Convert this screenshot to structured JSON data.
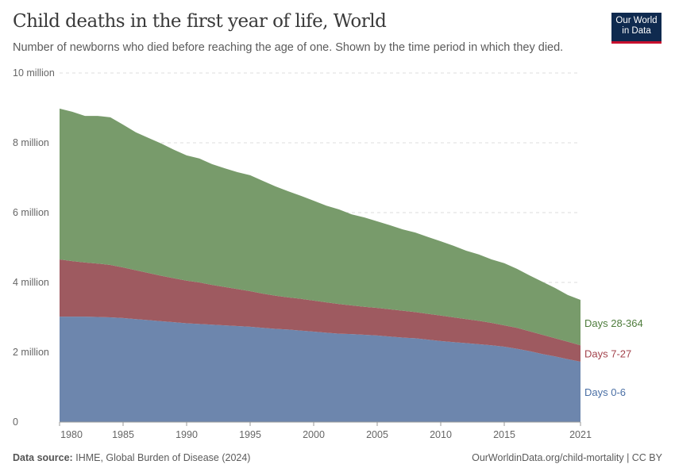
{
  "header": {
    "title": "Child deaths in the first year of life, World",
    "subtitle": "Number of newborns who died before reaching the age of one. Shown by the time period in which they died."
  },
  "logo": {
    "line1": "Our World",
    "line2": "in Data"
  },
  "footer": {
    "source_label": "Data source:",
    "source": "IHME, Global Burden of Disease (2024)",
    "url": "OurWorldinData.org/child-mortality | CC BY"
  },
  "chart_data": {
    "type": "area",
    "stacked": true,
    "title": "Child deaths in the first year of life, World",
    "xlim": [
      1980,
      2021
    ],
    "ylim": [
      0,
      10000000
    ],
    "x_ticks": [
      "1980",
      "1985",
      "1990",
      "1995",
      "2000",
      "2005",
      "2010",
      "2015",
      "2021"
    ],
    "y_ticks": [
      "0",
      "2 million",
      "4 million",
      "6 million",
      "8 million",
      "10 million"
    ],
    "grid": "horizontal dashed",
    "legend": "right, inline labels",
    "x": [
      1980,
      1981,
      1982,
      1983,
      1984,
      1985,
      1986,
      1987,
      1988,
      1989,
      1990,
      1991,
      1992,
      1993,
      1994,
      1995,
      1996,
      1997,
      1998,
      1999,
      2000,
      2001,
      2002,
      2003,
      2004,
      2005,
      2006,
      2007,
      2008,
      2009,
      2010,
      2011,
      2012,
      2013,
      2014,
      2015,
      2016,
      2017,
      2018,
      2019,
      2020,
      2021
    ],
    "series": [
      {
        "name": "Days 0-6",
        "color": "#6d86ad",
        "label_color": "#4a6fa5",
        "values_million": [
          3.02,
          3.02,
          3.02,
          3.01,
          3.0,
          2.98,
          2.95,
          2.92,
          2.89,
          2.86,
          2.83,
          2.81,
          2.79,
          2.77,
          2.75,
          2.73,
          2.7,
          2.67,
          2.65,
          2.62,
          2.59,
          2.56,
          2.53,
          2.52,
          2.5,
          2.48,
          2.45,
          2.42,
          2.4,
          2.36,
          2.32,
          2.29,
          2.26,
          2.23,
          2.2,
          2.16,
          2.1,
          2.03,
          1.95,
          1.88,
          1.8,
          1.73
        ]
      },
      {
        "name": "Days 7-27",
        "color": "#9e5a60",
        "label_color": "#a3434c",
        "values_million": [
          1.64,
          1.59,
          1.55,
          1.53,
          1.5,
          1.45,
          1.4,
          1.35,
          1.3,
          1.26,
          1.22,
          1.19,
          1.14,
          1.1,
          1.06,
          1.02,
          0.98,
          0.95,
          0.92,
          0.91,
          0.89,
          0.87,
          0.85,
          0.82,
          0.8,
          0.79,
          0.78,
          0.77,
          0.75,
          0.74,
          0.73,
          0.71,
          0.69,
          0.67,
          0.64,
          0.61,
          0.6,
          0.57,
          0.55,
          0.52,
          0.5,
          0.47
        ]
      },
      {
        "name": "Days 28-364",
        "color": "#789b6b",
        "label_color": "#4e7c3c",
        "values_million": [
          4.32,
          4.28,
          4.2,
          4.23,
          4.23,
          4.09,
          3.95,
          3.87,
          3.79,
          3.68,
          3.59,
          3.55,
          3.46,
          3.4,
          3.35,
          3.32,
          3.23,
          3.13,
          3.04,
          2.95,
          2.86,
          2.77,
          2.71,
          2.61,
          2.56,
          2.48,
          2.41,
          2.33,
          2.28,
          2.2,
          2.13,
          2.05,
          1.96,
          1.9,
          1.82,
          1.78,
          1.69,
          1.6,
          1.52,
          1.44,
          1.34,
          1.3
        ]
      }
    ]
  }
}
